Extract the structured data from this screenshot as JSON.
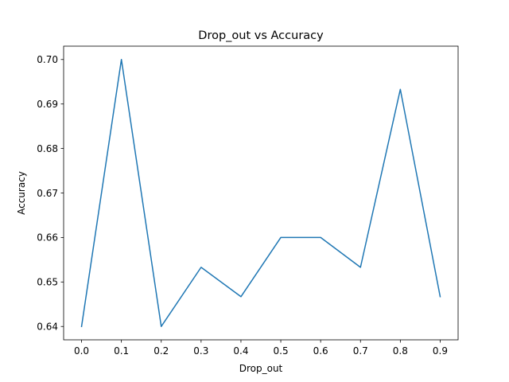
{
  "chart_data": {
    "type": "line",
    "title": "Drop_out vs Accuracy",
    "xlabel": "Drop_out",
    "ylabel": "Accuracy",
    "x": [
      0.0,
      0.1,
      0.2,
      0.3,
      0.4,
      0.5,
      0.6,
      0.7,
      0.8,
      0.9
    ],
    "series": [
      {
        "values": [
          0.64,
          0.7,
          0.64,
          0.6533,
          0.6467,
          0.66,
          0.66,
          0.6533,
          0.6933,
          0.6467
        ]
      }
    ],
    "xlim": [
      -0.045,
      0.945
    ],
    "ylim": [
      0.637,
      0.703
    ],
    "xticks": [
      "0.0",
      "0.1",
      "0.2",
      "0.3",
      "0.4",
      "0.5",
      "0.6",
      "0.7",
      "0.8",
      "0.9"
    ],
    "yticks": [
      "0.64",
      "0.65",
      "0.66",
      "0.67",
      "0.68",
      "0.69",
      "0.70"
    ],
    "grid": false,
    "line_color": "#1f77b4"
  }
}
